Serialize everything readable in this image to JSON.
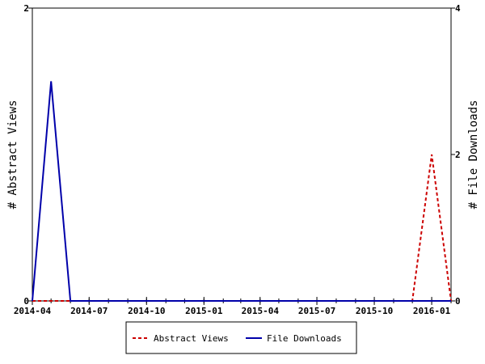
{
  "chart_data": {
    "type": "line",
    "x_axis": {
      "type": "date",
      "range": [
        "2014-04-01",
        "2016-02-01"
      ],
      "tick_labels": [
        "2014-04",
        "2014-07",
        "2014-10",
        "2015-01",
        "2015-04",
        "2015-07",
        "2015-10",
        "2016-01"
      ]
    },
    "y_axis_left": {
      "label": "# Abstract Views",
      "range": [
        0,
        2
      ],
      "tick_labels": [
        "0",
        "2"
      ]
    },
    "y_axis_right": {
      "label": "# File Downloads",
      "range": [
        0,
        4
      ],
      "tick_labels": [
        "0",
        "2",
        "4"
      ]
    },
    "x": [
      "2014-04",
      "2014-05",
      "2014-06",
      "2014-07",
      "2014-08",
      "2014-09",
      "2014-10",
      "2014-11",
      "2014-12",
      "2015-01",
      "2015-02",
      "2015-03",
      "2015-04",
      "2015-05",
      "2015-06",
      "2015-07",
      "2015-08",
      "2015-09",
      "2015-10",
      "2015-11",
      "2015-12",
      "2016-01",
      "2016-02"
    ],
    "series": [
      {
        "name": "Abstract Views",
        "axis": "left",
        "color": "#cc0000",
        "dash": "dashed",
        "values": [
          0,
          0,
          0,
          0,
          0,
          0,
          0,
          0,
          0,
          0,
          0,
          0,
          0,
          0,
          0,
          0,
          0,
          0,
          0,
          0,
          0,
          1,
          0
        ]
      },
      {
        "name": "File Downloads",
        "axis": "right",
        "color": "#0000aa",
        "dash": "solid",
        "values": [
          0,
          3,
          0,
          0,
          0,
          0,
          0,
          0,
          0,
          0,
          0,
          0,
          0,
          0,
          0,
          0,
          0,
          0,
          0,
          0,
          0,
          0,
          0
        ]
      }
    ],
    "grid": false,
    "legend": {
      "position": "bottom-center",
      "entries": [
        "Abstract Views",
        "File Downloads"
      ]
    }
  }
}
